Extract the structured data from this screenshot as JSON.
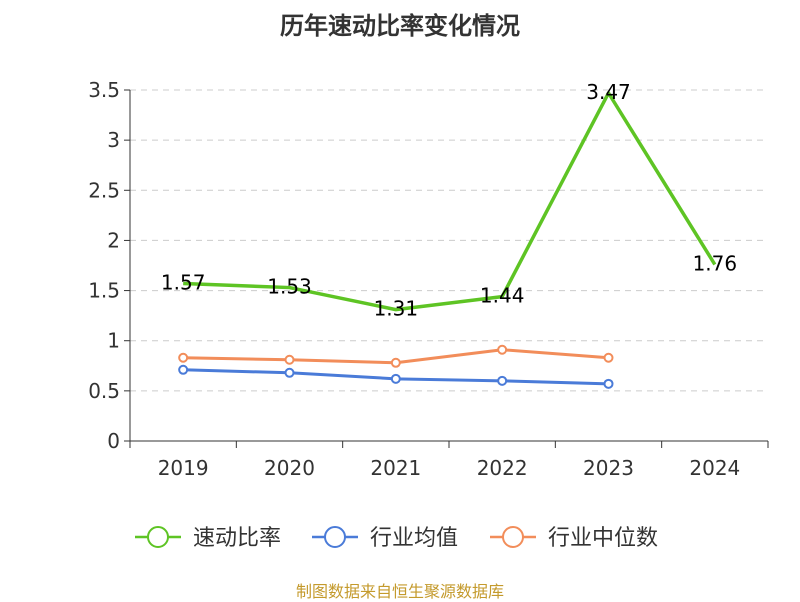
{
  "chart_data": {
    "type": "line",
    "title": "历年速动比率变化情况",
    "categories": [
      "2019",
      "2020",
      "2021",
      "2022",
      "2023",
      "2024"
    ],
    "ylim": [
      0,
      3.5
    ],
    "yticks": [
      "0",
      "0.5",
      "1",
      "1.5",
      "2",
      "2.5",
      "3",
      "3.5"
    ],
    "grid": true,
    "legend_position": "bottom",
    "series": [
      {
        "name": "速动比率",
        "values": [
          1.57,
          1.53,
          1.31,
          1.44,
          3.47,
          1.76
        ],
        "labels": [
          "1.57",
          "1.53",
          "1.31",
          "1.44",
          "3.47",
          "1.76"
        ],
        "color": "#5ec424"
      },
      {
        "name": "行业均值",
        "values": [
          0.71,
          0.68,
          0.62,
          0.6,
          0.57,
          null
        ],
        "color": "#4a7bd8"
      },
      {
        "name": "行业中位数",
        "values": [
          0.83,
          0.81,
          0.78,
          0.91,
          0.83,
          null
        ],
        "color": "#f28d5a"
      }
    ]
  },
  "footer": {
    "source": "制图数据来自恒生聚源数据库"
  }
}
